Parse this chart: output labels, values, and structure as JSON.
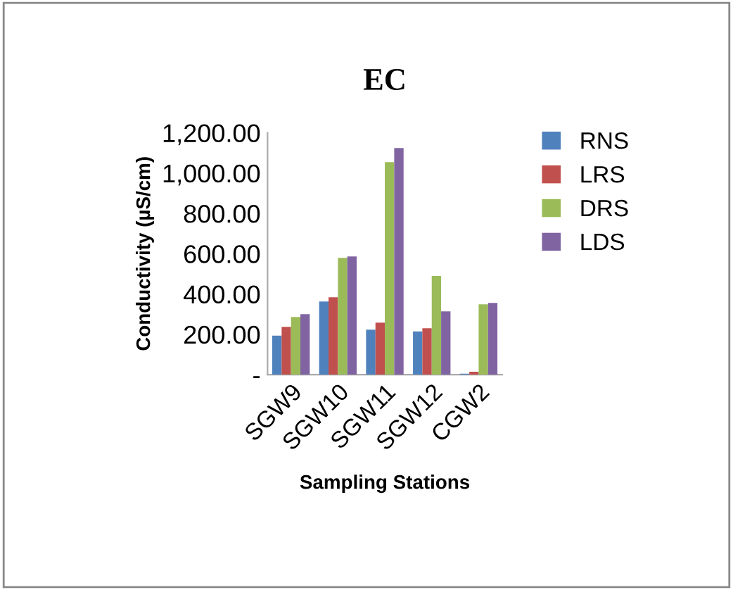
{
  "chart_data": {
    "type": "bar",
    "title": "EC",
    "xlabel": "Sampling Stations",
    "ylabel": "Conductivity (µS/cm)",
    "categories": [
      "SGW9",
      "SGW10",
      "SGW11",
      "SGW12",
      "CGW2"
    ],
    "series": [
      {
        "name": "RNS",
        "color": "#4f81bd",
        "values": [
          193,
          363,
          223,
          214,
          5
        ]
      },
      {
        "name": "LRS",
        "color": "#c0504d",
        "values": [
          237,
          384,
          258,
          230,
          14
        ]
      },
      {
        "name": "DRS",
        "color": "#9bbb59",
        "values": [
          286,
          579,
          1054,
          489,
          349
        ]
      },
      {
        "name": "LDS",
        "color": "#8064a2",
        "values": [
          300,
          586,
          1124,
          314,
          356
        ]
      }
    ],
    "ylim": [
      0,
      1200
    ],
    "yticks": [
      {
        "value": 0,
        "label": "-"
      },
      {
        "value": 200,
        "label": "200.00"
      },
      {
        "value": 400,
        "label": "400.00"
      },
      {
        "value": 600,
        "label": "600.00"
      },
      {
        "value": 800,
        "label": "800.00"
      },
      {
        "value": 1000,
        "label": "1,000.00"
      },
      {
        "value": 1200,
        "label": "1,200.00"
      }
    ],
    "grid": false,
    "legend": "right"
  }
}
